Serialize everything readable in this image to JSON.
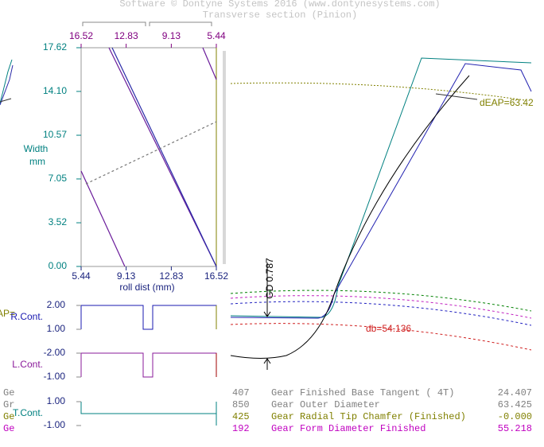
{
  "header": {
    "copyright": "Software © Dontyne Systems 2016  (www.dontynesystems.com)",
    "subtitle": "Transverse section (Pinion)"
  },
  "chart_data": [
    {
      "type": "line",
      "x_label": "roll dist (mm)",
      "y_label": "Width",
      "y_unit": "mm",
      "xlim": [
        5.44,
        16.52
      ],
      "xticks": [
        5.44,
        9.13,
        12.83,
        16.52
      ],
      "x2lim": [
        16.52,
        5.44
      ],
      "x2ticks": [
        16.52,
        12.83,
        9.13,
        5.44
      ],
      "ylim": [
        0,
        17.62
      ],
      "yticks": [
        {
          "value": 0,
          "label": "0.00"
        },
        3.52,
        7.05,
        10.57,
        {
          "value": 14.1,
          "label": "14.10"
        },
        17.62
      ],
      "series": [
        {
          "color": "#6a1b9a",
          "x": [
            7.72,
            16.52
          ],
          "values": [
            17.62,
            0
          ]
        },
        {
          "color": "#2a2aa8",
          "x": [
            7.98,
            16.52
          ],
          "values": [
            17.62,
            0
          ]
        },
        {
          "color": "#6a1b9a",
          "x": [
            5.44,
            9.02
          ],
          "values": [
            7.69,
            0
          ]
        },
        {
          "color": "#6a1b9a",
          "x": [
            15.41,
            16.52
          ],
          "values": [
            17.62,
            15.06
          ]
        },
        {
          "color": "#777777",
          "dashed": true,
          "x": [
            5.83,
            16.52
          ],
          "values": [
            6.65,
            11.66
          ]
        }
      ]
    },
    {
      "type": "step",
      "label": "R.Cont.",
      "color": "#1a1ab0",
      "ylim": [
        1,
        2
      ],
      "yticks": [
        {
          "value": 2,
          "label": "2.00"
        },
        {
          "value": 1,
          "label": "1.00"
        }
      ]
    },
    {
      "type": "step",
      "label": "L.Cont.",
      "color": "#8a1a9a",
      "ylim": [
        -1,
        -2
      ],
      "yticks": [
        {
          "value": -2,
          "label": "-2.00"
        },
        {
          "value": -1,
          "label": "-1.00"
        }
      ]
    },
    {
      "type": "step",
      "label": "T.Cont.",
      "color": "#008080",
      "ylim": [
        -1,
        1
      ],
      "yticks": [
        {
          "value": 1,
          "label": "1.00"
        },
        {
          "value": -1,
          "label": "-1.00"
        }
      ]
    }
  ],
  "section": {
    "left_cut": "AP=",
    "deap": "dEAP=63.42",
    "gd": "GD  0.787",
    "db": "db=54.136"
  },
  "table": {
    "rows": [
      [
        "Ge",
        "407",
        "Gear Finished Base Tangent ( 4T)",
        "24.407"
      ],
      [
        "Gr",
        "850",
        "Gear Outer Diameter",
        "63.425"
      ],
      [
        "Ge",
        "425",
        "Gear Radial Tip Chamfer (Finished)",
        "-0.000"
      ],
      [
        "Ge",
        "192",
        "Gear Form Diameter Finished",
        "55.218"
      ]
    ]
  }
}
